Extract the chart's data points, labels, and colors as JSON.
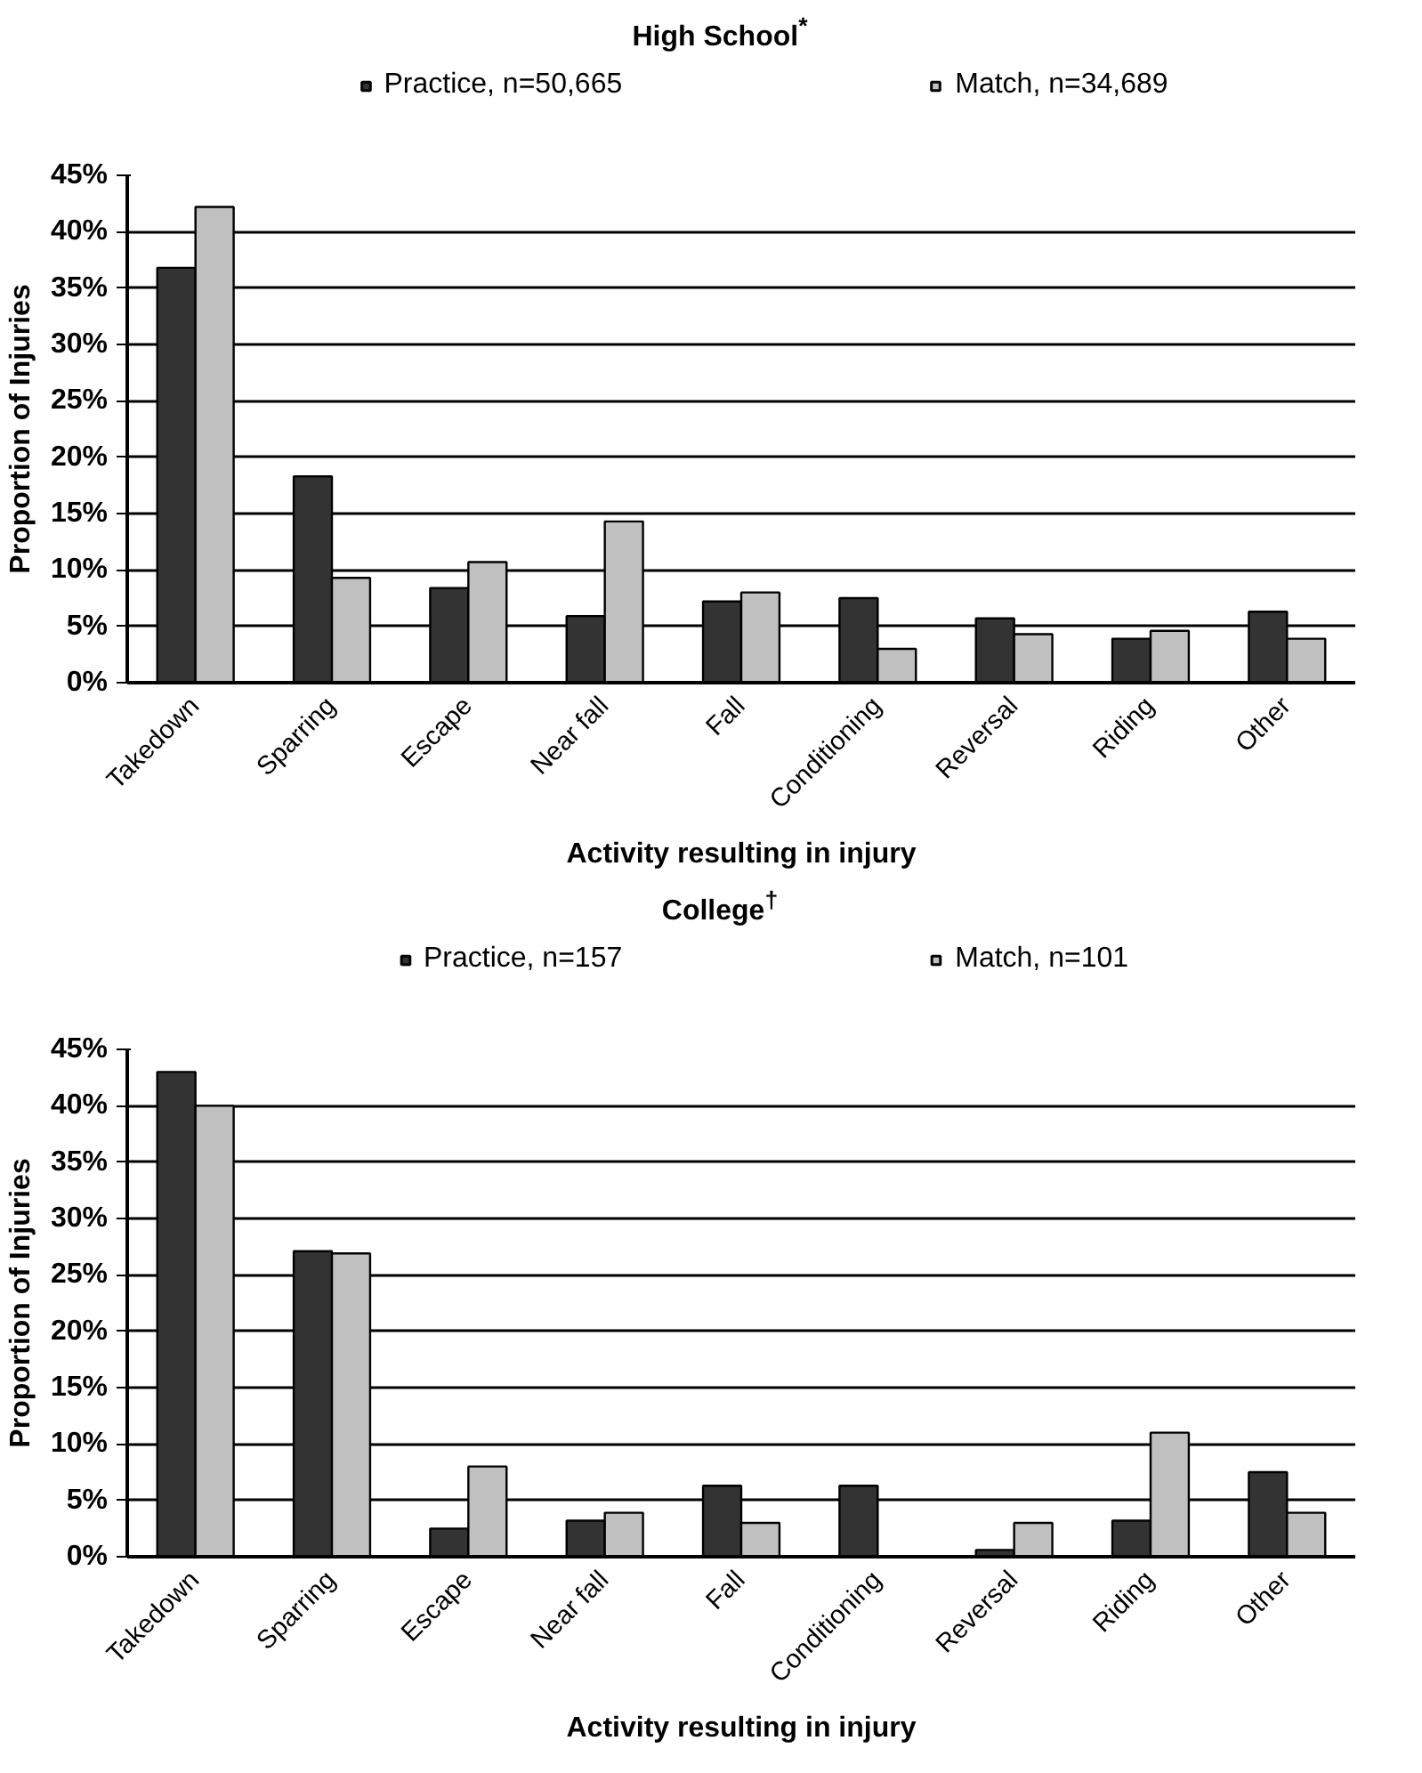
{
  "chart_data": [
    {
      "type": "bar",
      "title": "High School$^{*}$",
      "xlabel": "Activity resulting in injury",
      "ylabel": "Proportion of Injuries",
      "categories": [
        "Takedown",
        "Sparring",
        "Escape",
        "Near fall",
        "Fall",
        "Conditioning",
        "Reversal",
        "Riding",
        "Other"
      ],
      "series": [
        {
          "name": "Practice, n=50,665",
          "color": "#333333",
          "values": [
            36.8,
            18.3,
            8.4,
            5.9,
            7.2,
            7.5,
            5.7,
            3.9,
            6.3
          ]
        },
        {
          "name": "Match, n=34,689",
          "color": "#c0c0c0",
          "values": [
            42.2,
            9.3,
            10.7,
            14.3,
            8.0,
            3.0,
            4.3,
            4.6,
            3.9
          ]
        }
      ],
      "ylim": [
        0,
        45
      ],
      "yticks": [
        {
          "value": 0,
          "label": "0%"
        },
        {
          "value": 5,
          "label": "5%"
        },
        {
          "value": 10,
          "label": "10%"
        },
        {
          "value": 15,
          "label": "15%"
        },
        {
          "value": 20,
          "label": "20%"
        },
        {
          "value": 25,
          "label": "25%"
        },
        {
          "value": 30,
          "label": "30%"
        },
        {
          "value": 35,
          "label": "35%"
        },
        {
          "value": 40,
          "label": "40%"
        },
        {
          "value": 45,
          "label": "45%"
        }
      ],
      "grid": "y",
      "legend": "top"
    },
    {
      "type": "bar",
      "title": "College$^{†}$",
      "xlabel": "Activity resulting in injury",
      "ylabel": "Proportion of Injuries",
      "categories": [
        "Takedown",
        "Sparring",
        "Escape",
        "Near fall",
        "Fall",
        "Conditioning",
        "Reversal",
        "Riding",
        "Other"
      ],
      "series": [
        {
          "name": "Practice, n=157",
          "color": "#333333",
          "values": [
            43.0,
            27.1,
            2.5,
            3.2,
            6.3,
            6.3,
            0.6,
            3.2,
            7.5
          ]
        },
        {
          "name": "Match, n=101",
          "color": "#c0c0c0",
          "values": [
            40.0,
            26.9,
            8.0,
            3.9,
            3.0,
            null,
            3.0,
            11.0,
            3.9
          ]
        }
      ],
      "ylim": [
        0,
        45
      ],
      "yticks": [
        {
          "value": 0,
          "label": "0%"
        },
        {
          "value": 5,
          "label": "5%"
        },
        {
          "value": 10,
          "label": "10%"
        },
        {
          "value": 15,
          "label": "15%"
        },
        {
          "value": 20,
          "label": "20%"
        },
        {
          "value": 25,
          "label": "25%"
        },
        {
          "value": 30,
          "label": "30%"
        },
        {
          "value": 35,
          "label": "35%"
        },
        {
          "value": 40,
          "label": "40%"
        },
        {
          "value": 45,
          "label": "45%"
        }
      ],
      "grid": "y",
      "legend": "top"
    }
  ]
}
